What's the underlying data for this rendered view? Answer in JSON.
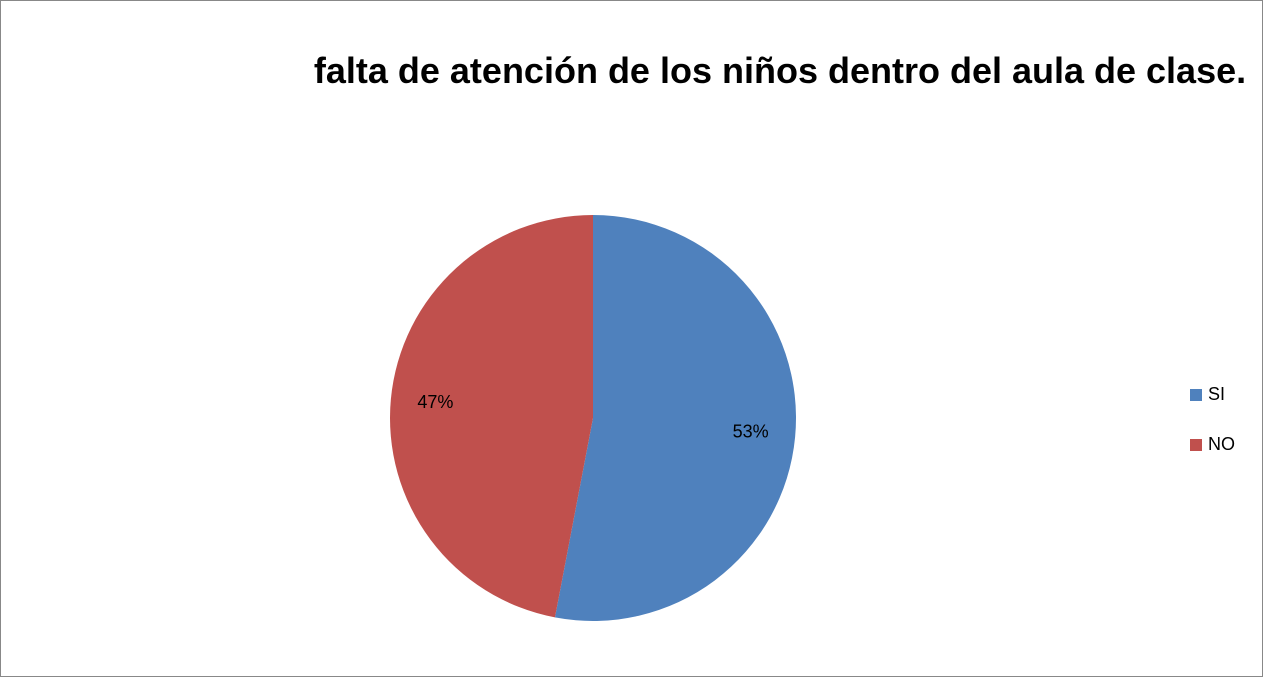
{
  "chart_data": {
    "type": "pie",
    "title": "falta de atención de los niños dentro del aula de clase.",
    "categories": [
      "SI",
      "NO"
    ],
    "values": [
      53,
      47
    ],
    "value_labels": [
      "53%",
      "47%"
    ],
    "colors": [
      "#4f81bd",
      "#c0504d"
    ],
    "legend": "right"
  }
}
